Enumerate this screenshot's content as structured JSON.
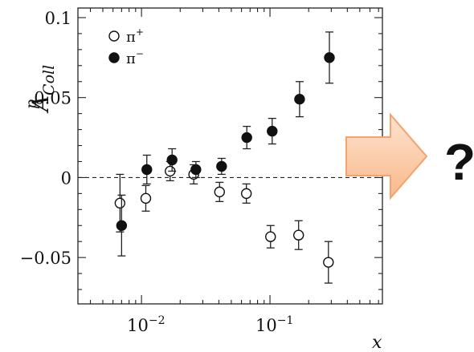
{
  "chart_data": {
    "type": "scatter",
    "x_scale": "log",
    "xlabel": "x",
    "ylabel_main": "A",
    "ylabel_sup": "p",
    "ylabel_sub": "Coll",
    "xlim": [
      0.0032,
      0.75
    ],
    "ylim": [
      -0.079,
      0.106
    ],
    "y_ticks": [
      {
        "value": 0.1,
        "label": "0.1"
      },
      {
        "value": 0.05,
        "label": "0.05"
      },
      {
        "value": 0,
        "label": "0"
      },
      {
        "value": -0.05,
        "label": "−0.05"
      }
    ],
    "x_ticks": [
      {
        "value": 0.01,
        "base": "10",
        "exp": "−2"
      },
      {
        "value": 0.1,
        "base": "10",
        "exp": "−1"
      }
    ],
    "zero_line": "dashed",
    "legend_position": "top-left",
    "series": [
      {
        "name": "π",
        "name_sup": "+",
        "marker": "open-circle",
        "points": [
          {
            "x": 0.0068,
            "y": -0.016,
            "err": 0.018
          },
          {
            "x": 0.0108,
            "y": -0.013,
            "err": 0.008
          },
          {
            "x": 0.0167,
            "y": 0.004,
            "err": 0.006
          },
          {
            "x": 0.0255,
            "y": 0.002,
            "err": 0.006
          },
          {
            "x": 0.0405,
            "y": -0.009,
            "err": 0.006
          },
          {
            "x": 0.0655,
            "y": -0.01,
            "err": 0.006
          },
          {
            "x": 0.101,
            "y": -0.037,
            "err": 0.007
          },
          {
            "x": 0.167,
            "y": -0.036,
            "err": 0.009
          },
          {
            "x": 0.285,
            "y": -0.053,
            "err": 0.013
          }
        ]
      },
      {
        "name": "π",
        "name_sup": "−",
        "marker": "filled-circle",
        "points": [
          {
            "x": 0.007,
            "y": -0.03,
            "err": 0.019
          },
          {
            "x": 0.011,
            "y": 0.005,
            "err": 0.009
          },
          {
            "x": 0.0173,
            "y": 0.011,
            "err": 0.007
          },
          {
            "x": 0.0265,
            "y": 0.005,
            "err": 0.005
          },
          {
            "x": 0.042,
            "y": 0.007,
            "err": 0.005
          },
          {
            "x": 0.066,
            "y": 0.025,
            "err": 0.007
          },
          {
            "x": 0.104,
            "y": 0.029,
            "err": 0.008
          },
          {
            "x": 0.17,
            "y": 0.049,
            "err": 0.011
          },
          {
            "x": 0.29,
            "y": 0.075,
            "err": 0.016
          }
        ]
      }
    ]
  },
  "annotation": {
    "question_mark": "?",
    "arrow_fill": "#fbc9a4",
    "arrow_stroke": "#f3a36f",
    "question_color": "#e8751a"
  }
}
